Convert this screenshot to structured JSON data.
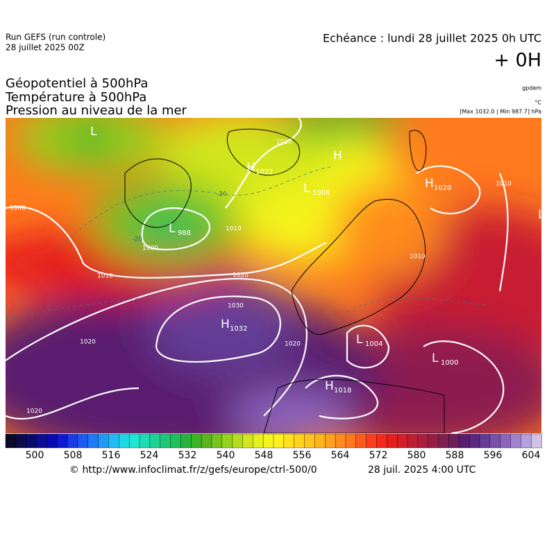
{
  "header": {
    "run": "Run GEFS (run controle)",
    "run_date": "28 juillet 2025 00Z",
    "echeance": "Echéance : lundi 28 juillet 2025 0h UTC",
    "offset": "+ 0H",
    "fields": [
      "Géopotentiel à 500hPa",
      "Température à 500hPa",
      "Pression au niveau de la mer"
    ],
    "units": [
      "gpdam",
      "°C"
    ],
    "extremes": "[Max 1032.0 | Min 987.7] hPa"
  },
  "map": {
    "centers": [
      {
        "letter": "L",
        "value": null
      },
      {
        "letter": "H",
        "value": 1022
      },
      {
        "letter": "H",
        "value": null
      },
      {
        "letter": "L",
        "value": 1006
      },
      {
        "letter": "H",
        "value": 1020
      },
      {
        "letter": "L",
        "value": 988
      },
      {
        "letter": "H",
        "value": 1032
      },
      {
        "letter": "L",
        "value": 1004
      },
      {
        "letter": "L",
        "value": 1000
      },
      {
        "letter": "H",
        "value": 1018
      },
      {
        "letter": "L",
        "value": null
      }
    ],
    "isobar_labels": [
      1008,
      1010,
      1020,
      1030,
      1020,
      1020,
      1020,
      1000,
      1010,
      1010,
      1010,
      1010
    ],
    "temperature_labels": [
      -20,
      -20
    ]
  },
  "colorbar": {
    "ticks": [
      500,
      508,
      516,
      524,
      532,
      540,
      548,
      556,
      564,
      572,
      580,
      588,
      596,
      604
    ],
    "colors": [
      "#0a0a28",
      "#0c0c48",
      "#0a0a6e",
      "#0c0c96",
      "#0a0ab4",
      "#0c1ad2",
      "#1a3ae6",
      "#1e5af0",
      "#1e7af5",
      "#1e9cf5",
      "#1ebef5",
      "#1ed8e6",
      "#1ee6d0",
      "#1edcb4",
      "#1ed296",
      "#1ec878",
      "#1ebe5a",
      "#28b43c",
      "#3cb428",
      "#5ab41e",
      "#78c31e",
      "#96d21e",
      "#b4dc1e",
      "#d2e61e",
      "#e6f01e",
      "#f5f51e",
      "#fff01e",
      "#ffe11e",
      "#ffd21e",
      "#ffc31e",
      "#ffb41e",
      "#ffa01e",
      "#ff8c1e",
      "#ff781e",
      "#ff5a1e",
      "#ff3c1e",
      "#f5281e",
      "#e61e1e",
      "#d21e28",
      "#be1e32",
      "#aa1e3c",
      "#961e46",
      "#821e50",
      "#6e1e5a",
      "#5a1e6e",
      "#5a2882",
      "#643c96",
      "#7850aa",
      "#8c64be",
      "#a082cd",
      "#b4a0dc",
      "#d2c3e6"
    ]
  },
  "footer": {
    "source": "© http://www.infoclimat.fr/z/gefs/europe/ctrl-500/0",
    "valid": "28 juil. 2025  4:00 UTC"
  }
}
